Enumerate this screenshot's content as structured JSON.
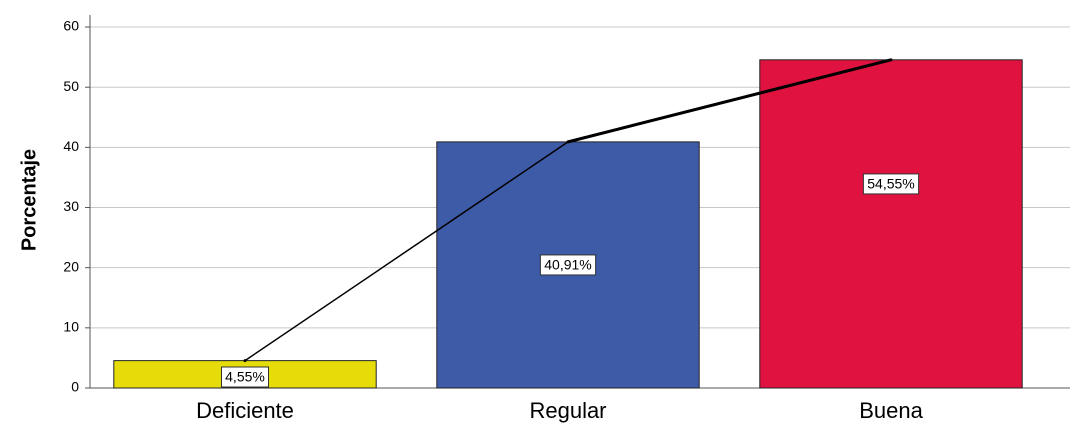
{
  "chart_data": {
    "type": "bar",
    "ylabel": "Porcentaje",
    "xlabel": "",
    "title": "",
    "ylim": [
      0,
      62
    ],
    "yticks": [
      0,
      10,
      20,
      30,
      40,
      50,
      60
    ],
    "grid": true,
    "categories": [
      "Deficiente",
      "Regular",
      "Buena"
    ],
    "values": [
      4.55,
      40.91,
      54.55
    ],
    "data_labels": [
      "4,55%",
      "40,91%",
      "54,55%"
    ],
    "colors": [
      "#e6dc0a",
      "#3e5ba8",
      "#e0123f"
    ],
    "line": {
      "type": "line",
      "color": "#000000",
      "values": [
        4.55,
        40.91,
        54.55
      ]
    }
  }
}
